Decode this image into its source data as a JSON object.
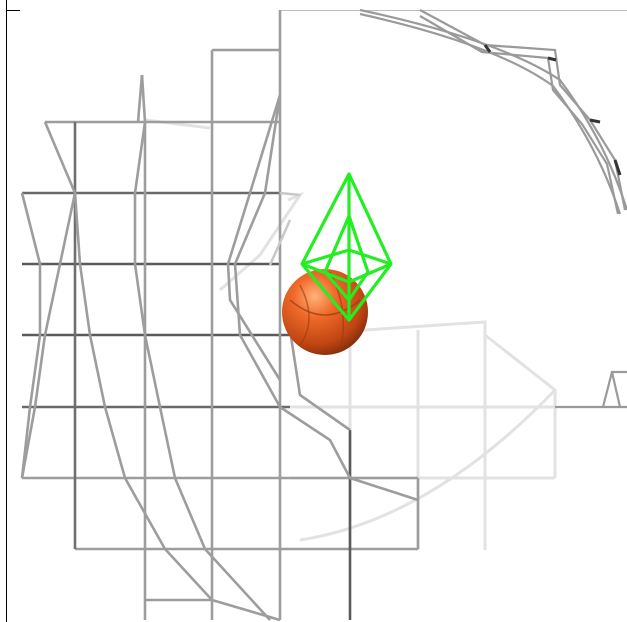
{
  "scene": {
    "background": "#ffffff",
    "frame_color": "#000000",
    "wire_color": "#8c8c8c",
    "wire_dark": "#4a4a4a",
    "wire_faint": "#d8d8d8",
    "probe_color": "#22ee22",
    "sphere_color": "#e8622a",
    "objects": [
      "grid-mesh",
      "cage-mesh",
      "ring-mesh",
      "octahedron",
      "sphere"
    ]
  }
}
